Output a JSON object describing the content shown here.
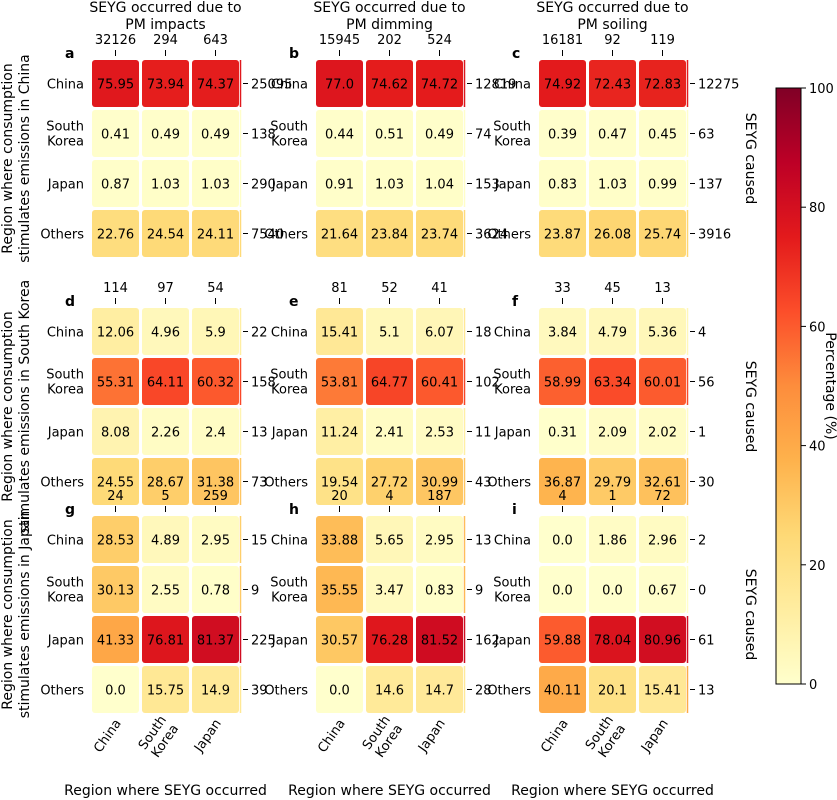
{
  "chart_data": {
    "type": "heatmap",
    "column_titles": [
      [
        "SEYG occurred due to",
        "PM impacts"
      ],
      [
        "SEYG occurred due to",
        "PM dimming"
      ],
      [
        "SEYG occurred due to",
        "PM soiling"
      ]
    ],
    "row_group_labels": [
      [
        "Region where consumption",
        "stimulates emissions in China"
      ],
      [
        "Region where consumption",
        "stimulates emissions in South Korea"
      ],
      [
        "Region where consumption",
        "stimulates emissions in Japan"
      ]
    ],
    "row_side_label": "SEYG caused",
    "xlabel": "Region where SEYG occurred",
    "x_categories": [
      [
        "China"
      ],
      [
        "South",
        "Korea"
      ],
      [
        "Japan"
      ]
    ],
    "y_categories": [
      [
        "China"
      ],
      [
        "South",
        "Korea"
      ],
      [
        "Japan"
      ],
      [
        "Others"
      ]
    ],
    "colorbar": {
      "label": "Percentage (%)",
      "range": [
        0,
        100
      ],
      "ticks": [
        "0",
        "20",
        "40",
        "60",
        "80",
        "100"
      ],
      "colormap": "YlOrRd"
    },
    "panels": [
      {
        "letter": "a",
        "col_totals": [
          "32126",
          "294",
          "643"
        ],
        "row_totals": [
          "25095",
          "138",
          "290",
          "7540"
        ],
        "values": [
          [
            "75.95",
            "73.94",
            "74.37"
          ],
          [
            "0.41",
            "0.49",
            "0.49"
          ],
          [
            "0.87",
            "1.03",
            "1.03"
          ],
          [
            "22.76",
            "24.54",
            "24.11"
          ]
        ]
      },
      {
        "letter": "b",
        "col_totals": [
          "15945",
          "202",
          "524"
        ],
        "row_totals": [
          "12819",
          "74",
          "153",
          "3624"
        ],
        "values": [
          [
            "77.0",
            "74.62",
            "74.72"
          ],
          [
            "0.44",
            "0.51",
            "0.49"
          ],
          [
            "0.91",
            "1.03",
            "1.04"
          ],
          [
            "21.64",
            "23.84",
            "23.74"
          ]
        ]
      },
      {
        "letter": "c",
        "col_totals": [
          "16181",
          "92",
          "119"
        ],
        "row_totals": [
          "12275",
          "63",
          "137",
          "3916"
        ],
        "values": [
          [
            "74.92",
            "72.43",
            "72.83"
          ],
          [
            "0.39",
            "0.47",
            "0.45"
          ],
          [
            "0.83",
            "1.03",
            "0.99"
          ],
          [
            "23.87",
            "26.08",
            "25.74"
          ]
        ]
      },
      {
        "letter": "d",
        "col_totals": [
          "114",
          "97",
          "54"
        ],
        "row_totals": [
          "22",
          "158",
          "13",
          "73"
        ],
        "values": [
          [
            "12.06",
            "4.96",
            "5.9"
          ],
          [
            "55.31",
            "64.11",
            "60.32"
          ],
          [
            "8.08",
            "2.26",
            "2.4"
          ],
          [
            "24.55",
            "28.67",
            "31.38"
          ]
        ]
      },
      {
        "letter": "e",
        "col_totals": [
          "81",
          "52",
          "41"
        ],
        "row_totals": [
          "18",
          "102",
          "11",
          "43"
        ],
        "values": [
          [
            "15.41",
            "5.1",
            "6.07"
          ],
          [
            "53.81",
            "64.77",
            "60.41"
          ],
          [
            "11.24",
            "2.41",
            "2.53"
          ],
          [
            "19.54",
            "27.72",
            "30.99"
          ]
        ]
      },
      {
        "letter": "f",
        "col_totals": [
          "33",
          "45",
          "13"
        ],
        "row_totals": [
          "4",
          "56",
          "1",
          "30"
        ],
        "values": [
          [
            "3.84",
            "4.79",
            "5.36"
          ],
          [
            "58.99",
            "63.34",
            "60.01"
          ],
          [
            "0.31",
            "2.09",
            "2.02"
          ],
          [
            "36.87",
            "29.79",
            "32.61"
          ]
        ]
      },
      {
        "letter": "g",
        "col_totals": [
          "24",
          "5",
          "259"
        ],
        "row_totals": [
          "15",
          "9",
          "225",
          "39"
        ],
        "values": [
          [
            "28.53",
            "4.89",
            "2.95"
          ],
          [
            "30.13",
            "2.55",
            "0.78"
          ],
          [
            "41.33",
            "76.81",
            "81.37"
          ],
          [
            "0.0",
            "15.75",
            "14.9"
          ]
        ]
      },
      {
        "letter": "h",
        "col_totals": [
          "20",
          "4",
          "187"
        ],
        "row_totals": [
          "13",
          "9",
          "162",
          "28"
        ],
        "values": [
          [
            "33.88",
            "5.65",
            "2.95"
          ],
          [
            "35.55",
            "3.47",
            "0.83"
          ],
          [
            "30.57",
            "76.28",
            "81.52"
          ],
          [
            "0.0",
            "14.6",
            "14.7"
          ]
        ]
      },
      {
        "letter": "i",
        "col_totals": [
          "4",
          "1",
          "72"
        ],
        "row_totals": [
          "2",
          "0",
          "61",
          "13"
        ],
        "values": [
          [
            "0.0",
            "1.86",
            "2.96"
          ],
          [
            "0.0",
            "0.0",
            "0.67"
          ],
          [
            "59.88",
            "78.04",
            "80.96"
          ],
          [
            "40.11",
            "20.1",
            "15.41"
          ]
        ]
      }
    ]
  }
}
